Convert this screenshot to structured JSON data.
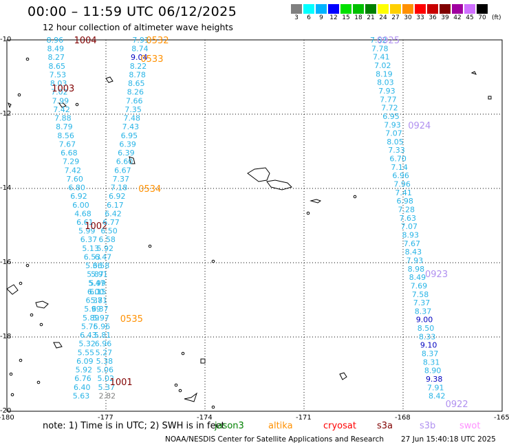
{
  "title": "00:00 – 11:59 UTC 06/12/2025",
  "subtitle": "12 hour collection of altimeter wave heights",
  "legend": {
    "unit": "(ft)",
    "bins": [
      {
        "label": "3",
        "color": "#808080"
      },
      {
        "label": "6",
        "color": "#00ffff"
      },
      {
        "label": "9",
        "color": "#00b4ff"
      },
      {
        "label": "12",
        "color": "#0000ff"
      },
      {
        "label": "15",
        "color": "#00e000"
      },
      {
        "label": "18",
        "color": "#00c000"
      },
      {
        "label": "21",
        "color": "#008000"
      },
      {
        "label": "24",
        "color": "#ffff00"
      },
      {
        "label": "27",
        "color": "#ffd000"
      },
      {
        "label": "30",
        "color": "#ff9000"
      },
      {
        "label": "33",
        "color": "#ff0000"
      },
      {
        "label": "36",
        "color": "#c80000"
      },
      {
        "label": "39",
        "color": "#800000"
      },
      {
        "label": "42",
        "color": "#a000a0"
      },
      {
        "label": "45",
        "color": "#d070ff"
      },
      {
        "label": "70",
        "color": "#000000"
      }
    ]
  },
  "axes": {
    "x_ticks": [
      "-180",
      "-177",
      "-174",
      "-171",
      "-168",
      "-165"
    ],
    "y_ticks": [
      "-10",
      "-12",
      "-14",
      "-16",
      "-18",
      "-20"
    ]
  },
  "tracks": [
    {
      "time": "1004",
      "time_color": "#800000",
      "lat": -10.0,
      "lon": -178.8,
      "color": "#28b4e6",
      "values": [
        "8.96",
        "8.49",
        "8.27",
        "8.65",
        "7.53",
        "8.03",
        "7.02",
        "7.99",
        "7.42",
        "7.88",
        "8.79",
        "8.56",
        "7.67",
        "6.68",
        "7.29",
        "7.42",
        "7.60",
        "6.80",
        "6.92",
        "6.00",
        "4.68",
        "6.61",
        "5.99",
        "6.37",
        "5.13",
        "6.53",
        "5.36",
        "5.87",
        "5.47",
        "6.15",
        "5.81",
        "6.37",
        "5.97",
        "5.96",
        "5.81",
        "6.96",
        "5.27",
        "5.38",
        "5.06",
        "5.02",
        "5.37",
        "2.82"
      ]
    },
    {
      "time": "1003",
      "time_color": "#800000",
      "lat": -11.3,
      "lon": -178.6
    },
    {
      "time": "1002",
      "time_color": "#800000",
      "lat": -15.0,
      "lon": -177.6
    },
    {
      "time": "1001",
      "time_color": "#800000",
      "lat": -19.2,
      "lon": -176.8
    },
    {
      "time": "0532",
      "time_color": "#ff9000",
      "lat": -10.0,
      "lon": -176.2,
      "color": "#28b4e6",
      "values": [
        "7.91",
        "8.74",
        "9.04",
        "8.22",
        "8.78",
        "8.65",
        "8.26",
        "7.66",
        "7.35",
        "7.48",
        "7.43",
        "6.95",
        "6.39",
        "6.39",
        "6.60",
        "6.67",
        "7.37",
        "7.18",
        "6.92",
        "6.17",
        "6.42",
        "6.77",
        "6.50",
        "6.58",
        "5.92",
        "6.47",
        "6.58",
        "5.91",
        "5.99",
        "6.00",
        "6.37",
        "5.99",
        "5.89",
        "5.76",
        "6.43",
        "5.32",
        "5.55",
        "6.09",
        "5.92",
        "6.76",
        "6.40",
        "5.63"
      ]
    },
    {
      "time": "0533",
      "time_color": "#ff9000",
      "lat": -10.5,
      "lon": -176.2
    },
    {
      "time": "0534",
      "time_color": "#ff9000",
      "lat": -14.0,
      "lon": -176.1
    },
    {
      "time": "0535",
      "time_color": "#ff9000",
      "lat": -17.5,
      "lon": -176.4
    },
    {
      "time": "0925",
      "time_color": "#b090f0",
      "lat": -10.0,
      "lon": -169.0,
      "color": "#28b4e6",
      "values": [
        "7.52",
        "7.78",
        "7.41",
        "7.02",
        "8.19",
        "8.03",
        "7.93",
        "7.77",
        "7.72",
        "6.95",
        "7.93",
        "7.07",
        "8.05",
        "7.33",
        "6.70",
        "7.14",
        "6.96",
        "7.96",
        "7.41",
        "6.98",
        "7.28",
        "7.63",
        "7.07",
        "8.93",
        "7.67",
        "8.43",
        "7.93",
        "8.98",
        "8.49",
        "7.69",
        "7.58",
        "7.37",
        "8.37",
        "9.00",
        "8.50",
        "8.33",
        "9.10",
        "8.37",
        "8.31",
        "8.90",
        "9.38",
        "7.91",
        "8.42"
      ]
    },
    {
      "time": "0924",
      "time_color": "#b090f0",
      "lat": -12.3,
      "lon": -168.1
    },
    {
      "time": "0923",
      "time_color": "#b090f0",
      "lat": -16.3,
      "lon": -167.5
    },
    {
      "time": "0922",
      "time_color": "#b090f0",
      "lat": -19.8,
      "lon": -166.8
    }
  ],
  "note": "note:  1) Time is in UTC;  2) SWH is in feet",
  "satellites": [
    {
      "name": "jason3",
      "color": "#008000"
    },
    {
      "name": "altika",
      "color": "#ff9000"
    },
    {
      "name": "cryosat",
      "color": "#ff0000"
    },
    {
      "name": "s3a",
      "color": "#800000"
    },
    {
      "name": "s3b",
      "color": "#b090f0"
    },
    {
      "name": "swot",
      "color": "#ff90ff"
    }
  ],
  "credit": "NOAA/NESDIS Center for Satellite Applications and Research",
  "timestamp": "27 Jun 15:40:18 UTC 2025"
}
